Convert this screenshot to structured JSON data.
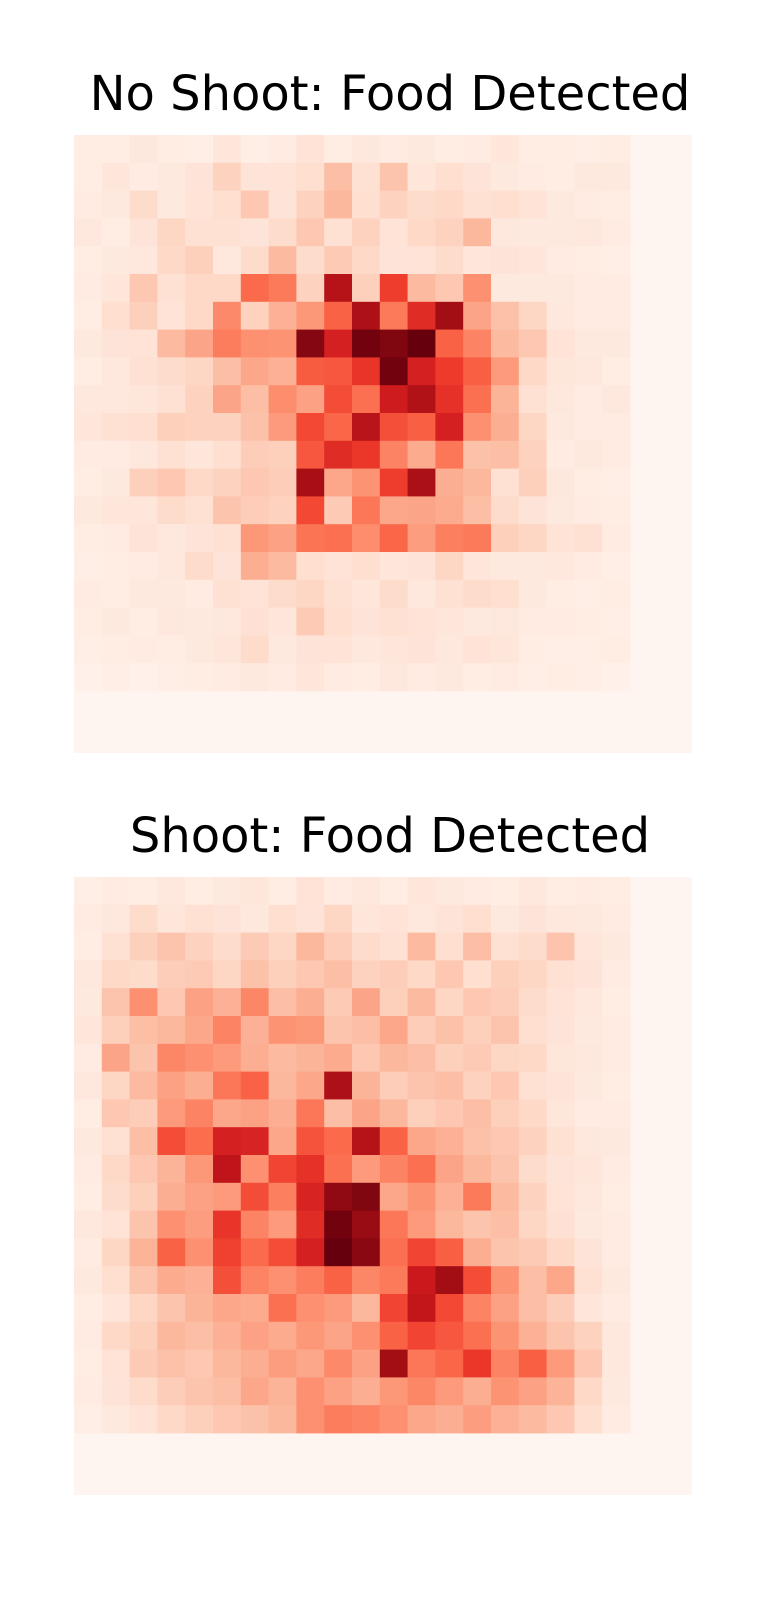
{
  "colormap": "Reds",
  "chart_data": [
    {
      "type": "heatmap",
      "title": "No Shoot: Food Detected",
      "grid": false,
      "axes": "off",
      "rows": 20,
      "cols": 20,
      "values": [
        [
          0.05,
          0.05,
          0.08,
          0.05,
          0.04,
          0.09,
          0.04,
          0.06,
          0.11,
          0.05,
          0.08,
          0.06,
          0.07,
          0.05,
          0.06,
          0.09,
          0.05,
          0.05,
          0.04,
          0.05
        ],
        [
          0.05,
          0.09,
          0.06,
          0.07,
          0.1,
          0.17,
          0.1,
          0.11,
          0.13,
          0.24,
          0.12,
          0.22,
          0.09,
          0.13,
          0.1,
          0.07,
          0.06,
          0.05,
          0.07,
          0.07
        ],
        [
          0.06,
          0.07,
          0.14,
          0.07,
          0.11,
          0.13,
          0.21,
          0.1,
          0.17,
          0.26,
          0.13,
          0.17,
          0.14,
          0.15,
          0.12,
          0.13,
          0.11,
          0.07,
          0.06,
          0.05
        ],
        [
          0.08,
          0.05,
          0.1,
          0.16,
          0.12,
          0.12,
          0.1,
          0.14,
          0.21,
          0.12,
          0.17,
          0.11,
          0.15,
          0.17,
          0.26,
          0.08,
          0.07,
          0.07,
          0.08,
          0.06
        ],
        [
          0.05,
          0.07,
          0.08,
          0.15,
          0.18,
          0.08,
          0.14,
          0.25,
          0.14,
          0.2,
          0.15,
          0.1,
          0.11,
          0.14,
          0.09,
          0.1,
          0.09,
          0.06,
          0.05,
          0.04
        ],
        [
          0.06,
          0.09,
          0.21,
          0.12,
          0.15,
          0.15,
          0.5,
          0.45,
          0.17,
          0.82,
          0.18,
          0.62,
          0.25,
          0.21,
          0.38,
          0.07,
          0.07,
          0.07,
          0.06,
          0.06
        ],
        [
          0.05,
          0.13,
          0.18,
          0.11,
          0.15,
          0.4,
          0.17,
          0.28,
          0.36,
          0.52,
          0.85,
          0.45,
          0.68,
          0.88,
          0.32,
          0.23,
          0.16,
          0.08,
          0.06,
          0.06
        ],
        [
          0.07,
          0.1,
          0.11,
          0.25,
          0.32,
          0.44,
          0.38,
          0.37,
          0.94,
          0.72,
          0.98,
          0.95,
          1.0,
          0.52,
          0.42,
          0.25,
          0.21,
          0.11,
          0.07,
          0.07
        ],
        [
          0.05,
          0.08,
          0.12,
          0.14,
          0.16,
          0.24,
          0.31,
          0.28,
          0.54,
          0.55,
          0.65,
          0.98,
          0.72,
          0.63,
          0.53,
          0.35,
          0.15,
          0.09,
          0.08,
          0.05
        ],
        [
          0.08,
          0.08,
          0.09,
          0.12,
          0.17,
          0.32,
          0.24,
          0.39,
          0.33,
          0.58,
          0.48,
          0.74,
          0.84,
          0.66,
          0.48,
          0.27,
          0.12,
          0.08,
          0.06,
          0.08
        ],
        [
          0.09,
          0.12,
          0.13,
          0.18,
          0.17,
          0.17,
          0.23,
          0.35,
          0.59,
          0.51,
          0.81,
          0.57,
          0.53,
          0.72,
          0.38,
          0.29,
          0.16,
          0.07,
          0.06,
          0.06
        ],
        [
          0.06,
          0.06,
          0.08,
          0.12,
          0.09,
          0.13,
          0.19,
          0.18,
          0.55,
          0.68,
          0.64,
          0.42,
          0.3,
          0.46,
          0.23,
          0.24,
          0.17,
          0.06,
          0.07,
          0.06
        ],
        [
          0.05,
          0.07,
          0.18,
          0.21,
          0.15,
          0.17,
          0.21,
          0.19,
          0.87,
          0.31,
          0.37,
          0.62,
          0.86,
          0.29,
          0.26,
          0.12,
          0.18,
          0.08,
          0.05,
          0.04
        ],
        [
          0.07,
          0.09,
          0.09,
          0.14,
          0.12,
          0.22,
          0.19,
          0.17,
          0.59,
          0.2,
          0.46,
          0.31,
          0.32,
          0.3,
          0.24,
          0.14,
          0.1,
          0.07,
          0.06,
          0.05
        ],
        [
          0.05,
          0.06,
          0.1,
          0.08,
          0.1,
          0.12,
          0.36,
          0.33,
          0.47,
          0.48,
          0.39,
          0.51,
          0.34,
          0.43,
          0.45,
          0.18,
          0.16,
          0.11,
          0.12,
          0.06
        ],
        [
          0.04,
          0.05,
          0.06,
          0.08,
          0.14,
          0.1,
          0.29,
          0.25,
          0.13,
          0.11,
          0.13,
          0.09,
          0.1,
          0.16,
          0.09,
          0.07,
          0.07,
          0.08,
          0.06,
          0.04
        ],
        [
          0.06,
          0.05,
          0.07,
          0.07,
          0.06,
          0.12,
          0.11,
          0.14,
          0.16,
          0.12,
          0.09,
          0.14,
          0.08,
          0.12,
          0.14,
          0.13,
          0.07,
          0.05,
          0.04,
          0.05
        ],
        [
          0.05,
          0.07,
          0.05,
          0.08,
          0.07,
          0.08,
          0.12,
          0.09,
          0.2,
          0.13,
          0.1,
          0.12,
          0.11,
          0.09,
          0.07,
          0.08,
          0.06,
          0.06,
          0.05,
          0.04
        ],
        [
          0.04,
          0.05,
          0.06,
          0.05,
          0.07,
          0.09,
          0.14,
          0.07,
          0.1,
          0.11,
          0.08,
          0.09,
          0.1,
          0.08,
          0.11,
          0.09,
          0.05,
          0.04,
          0.04,
          0.05
        ],
        [
          0.03,
          0.04,
          0.03,
          0.04,
          0.05,
          0.06,
          0.07,
          0.06,
          0.09,
          0.06,
          0.05,
          0.08,
          0.06,
          0.07,
          0.05,
          0.06,
          0.04,
          0.05,
          0.04,
          0.03
        ]
      ]
    },
    {
      "type": "heatmap",
      "title": "Shoot: Food Detected",
      "grid": false,
      "axes": "off",
      "rows": 20,
      "cols": 20,
      "values": [
        [
          0.04,
          0.06,
          0.05,
          0.08,
          0.05,
          0.07,
          0.09,
          0.05,
          0.11,
          0.06,
          0.08,
          0.05,
          0.09,
          0.07,
          0.06,
          0.05,
          0.08,
          0.05,
          0.06,
          0.05
        ],
        [
          0.06,
          0.08,
          0.14,
          0.09,
          0.12,
          0.1,
          0.08,
          0.13,
          0.1,
          0.16,
          0.09,
          0.11,
          0.08,
          0.1,
          0.13,
          0.07,
          0.1,
          0.08,
          0.07,
          0.06
        ],
        [
          0.05,
          0.12,
          0.18,
          0.22,
          0.17,
          0.14,
          0.2,
          0.16,
          0.26,
          0.19,
          0.14,
          0.12,
          0.25,
          0.13,
          0.24,
          0.12,
          0.14,
          0.22,
          0.09,
          0.07
        ],
        [
          0.08,
          0.15,
          0.14,
          0.19,
          0.2,
          0.16,
          0.23,
          0.18,
          0.21,
          0.24,
          0.17,
          0.19,
          0.15,
          0.21,
          0.13,
          0.18,
          0.16,
          0.12,
          0.1,
          0.06
        ],
        [
          0.07,
          0.22,
          0.38,
          0.21,
          0.33,
          0.28,
          0.41,
          0.24,
          0.29,
          0.2,
          0.32,
          0.18,
          0.25,
          0.16,
          0.21,
          0.19,
          0.14,
          0.11,
          0.08,
          0.05
        ],
        [
          0.09,
          0.18,
          0.24,
          0.26,
          0.31,
          0.42,
          0.28,
          0.37,
          0.36,
          0.22,
          0.24,
          0.31,
          0.19,
          0.23,
          0.18,
          0.22,
          0.13,
          0.1,
          0.07,
          0.06
        ],
        [
          0.06,
          0.32,
          0.22,
          0.41,
          0.38,
          0.35,
          0.29,
          0.25,
          0.27,
          0.3,
          0.21,
          0.26,
          0.24,
          0.18,
          0.2,
          0.16,
          0.15,
          0.09,
          0.08,
          0.06
        ],
        [
          0.08,
          0.16,
          0.25,
          0.33,
          0.29,
          0.46,
          0.52,
          0.26,
          0.31,
          0.85,
          0.27,
          0.19,
          0.22,
          0.24,
          0.17,
          0.21,
          0.12,
          0.1,
          0.07,
          0.05
        ],
        [
          0.05,
          0.21,
          0.19,
          0.35,
          0.42,
          0.31,
          0.33,
          0.29,
          0.46,
          0.24,
          0.32,
          0.26,
          0.18,
          0.21,
          0.24,
          0.18,
          0.15,
          0.09,
          0.06,
          0.06
        ],
        [
          0.07,
          0.12,
          0.24,
          0.58,
          0.49,
          0.72,
          0.71,
          0.31,
          0.56,
          0.5,
          0.82,
          0.52,
          0.31,
          0.28,
          0.23,
          0.21,
          0.17,
          0.12,
          0.08,
          0.07
        ],
        [
          0.06,
          0.15,
          0.21,
          0.27,
          0.36,
          0.79,
          0.38,
          0.6,
          0.66,
          0.48,
          0.35,
          0.42,
          0.48,
          0.32,
          0.26,
          0.22,
          0.14,
          0.1,
          0.09,
          0.06
        ],
        [
          0.05,
          0.14,
          0.18,
          0.29,
          0.33,
          0.35,
          0.58,
          0.43,
          0.71,
          0.92,
          0.95,
          0.31,
          0.37,
          0.28,
          0.45,
          0.25,
          0.17,
          0.11,
          0.08,
          0.05
        ],
        [
          0.08,
          0.11,
          0.22,
          0.38,
          0.34,
          0.65,
          0.42,
          0.35,
          0.68,
          0.98,
          0.9,
          0.46,
          0.35,
          0.26,
          0.22,
          0.24,
          0.16,
          0.12,
          0.07,
          0.06
        ],
        [
          0.06,
          0.16,
          0.27,
          0.52,
          0.38,
          0.61,
          0.5,
          0.58,
          0.72,
          1.0,
          0.93,
          0.48,
          0.6,
          0.53,
          0.29,
          0.22,
          0.2,
          0.15,
          0.1,
          0.06
        ],
        [
          0.07,
          0.13,
          0.22,
          0.3,
          0.28,
          0.57,
          0.42,
          0.38,
          0.44,
          0.52,
          0.41,
          0.45,
          0.75,
          0.88,
          0.58,
          0.37,
          0.24,
          0.31,
          0.12,
          0.07
        ],
        [
          0.05,
          0.09,
          0.16,
          0.22,
          0.27,
          0.31,
          0.3,
          0.48,
          0.38,
          0.35,
          0.26,
          0.6,
          0.78,
          0.59,
          0.42,
          0.33,
          0.24,
          0.19,
          0.09,
          0.06
        ],
        [
          0.06,
          0.15,
          0.18,
          0.26,
          0.24,
          0.28,
          0.33,
          0.3,
          0.36,
          0.32,
          0.38,
          0.52,
          0.6,
          0.55,
          0.48,
          0.37,
          0.28,
          0.22,
          0.17,
          0.08
        ],
        [
          0.05,
          0.11,
          0.2,
          0.23,
          0.21,
          0.26,
          0.29,
          0.34,
          0.31,
          0.4,
          0.33,
          0.88,
          0.46,
          0.51,
          0.64,
          0.42,
          0.53,
          0.35,
          0.21,
          0.08
        ],
        [
          0.06,
          0.1,
          0.14,
          0.19,
          0.22,
          0.24,
          0.31,
          0.27,
          0.38,
          0.33,
          0.29,
          0.36,
          0.41,
          0.35,
          0.29,
          0.37,
          0.33,
          0.27,
          0.15,
          0.07
        ],
        [
          0.04,
          0.07,
          0.11,
          0.15,
          0.18,
          0.21,
          0.23,
          0.26,
          0.38,
          0.44,
          0.42,
          0.38,
          0.31,
          0.29,
          0.34,
          0.28,
          0.25,
          0.21,
          0.13,
          0.06
        ]
      ]
    }
  ]
}
